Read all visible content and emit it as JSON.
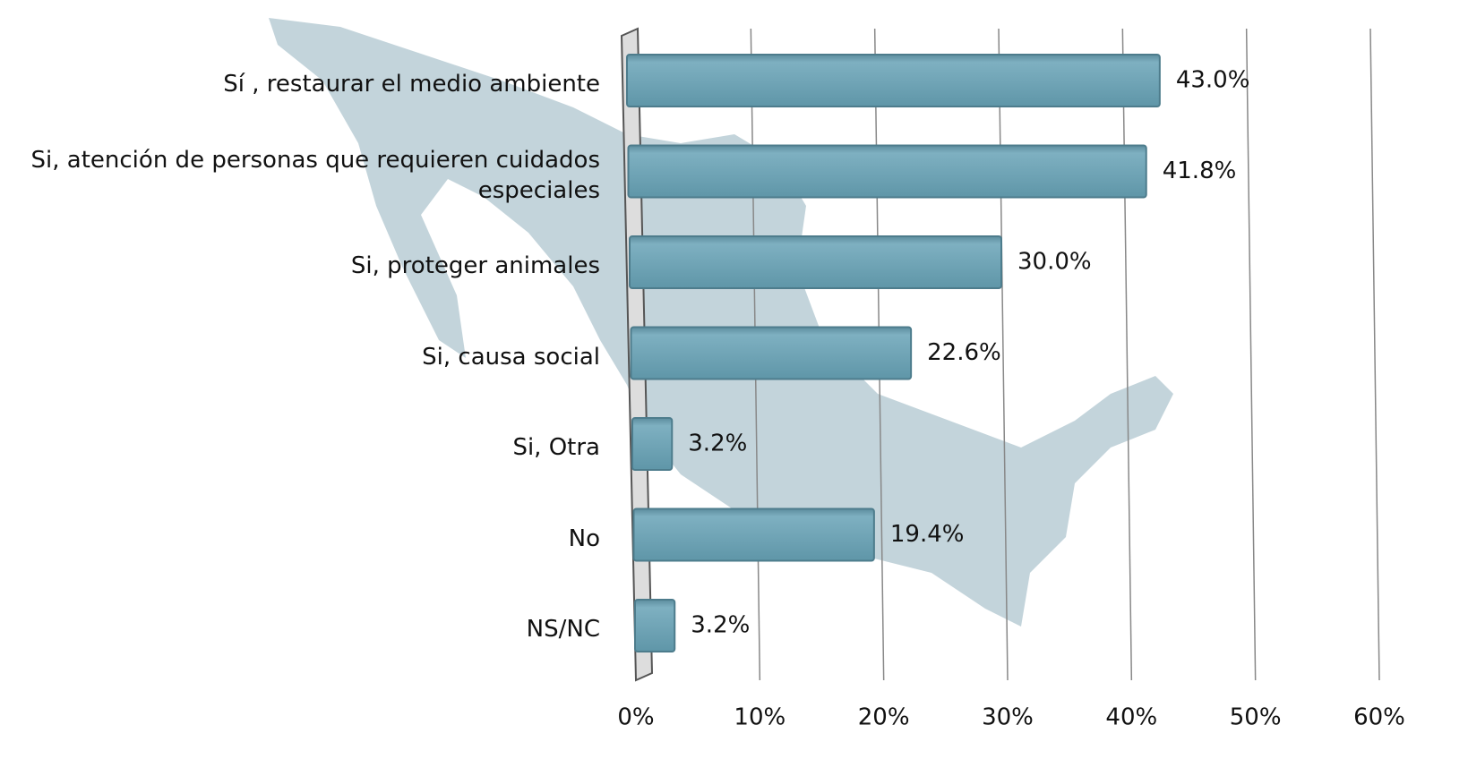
{
  "chart_data": {
    "type": "bar",
    "orientation": "horizontal",
    "categories": [
      "Sí , restaurar el medio ambiente",
      "Si, atención de personas que requieren cuidados especiales",
      "Si, proteger animales",
      "Si, causa social",
      "Si, Otra",
      "No",
      "NS/NC"
    ],
    "values": [
      43.0,
      41.8,
      30.0,
      22.6,
      3.2,
      19.4,
      3.2
    ],
    "value_labels": [
      "43.0%",
      "41.8%",
      "30.0%",
      "22.6%",
      "3.2%",
      "19.4%",
      "3.2%"
    ],
    "color": "#6fa3b5",
    "xlim": [
      0,
      60
    ],
    "xticks": [
      {
        "value": 0,
        "label": "0%"
      },
      {
        "value": 10,
        "label": "10%"
      },
      {
        "value": 20,
        "label": "20%"
      },
      {
        "value": 30,
        "label": "30%"
      },
      {
        "value": 40,
        "label": "40%"
      },
      {
        "value": 50,
        "label": "50%"
      },
      {
        "value": 60,
        "label": "60%"
      }
    ],
    "grid": true
  }
}
